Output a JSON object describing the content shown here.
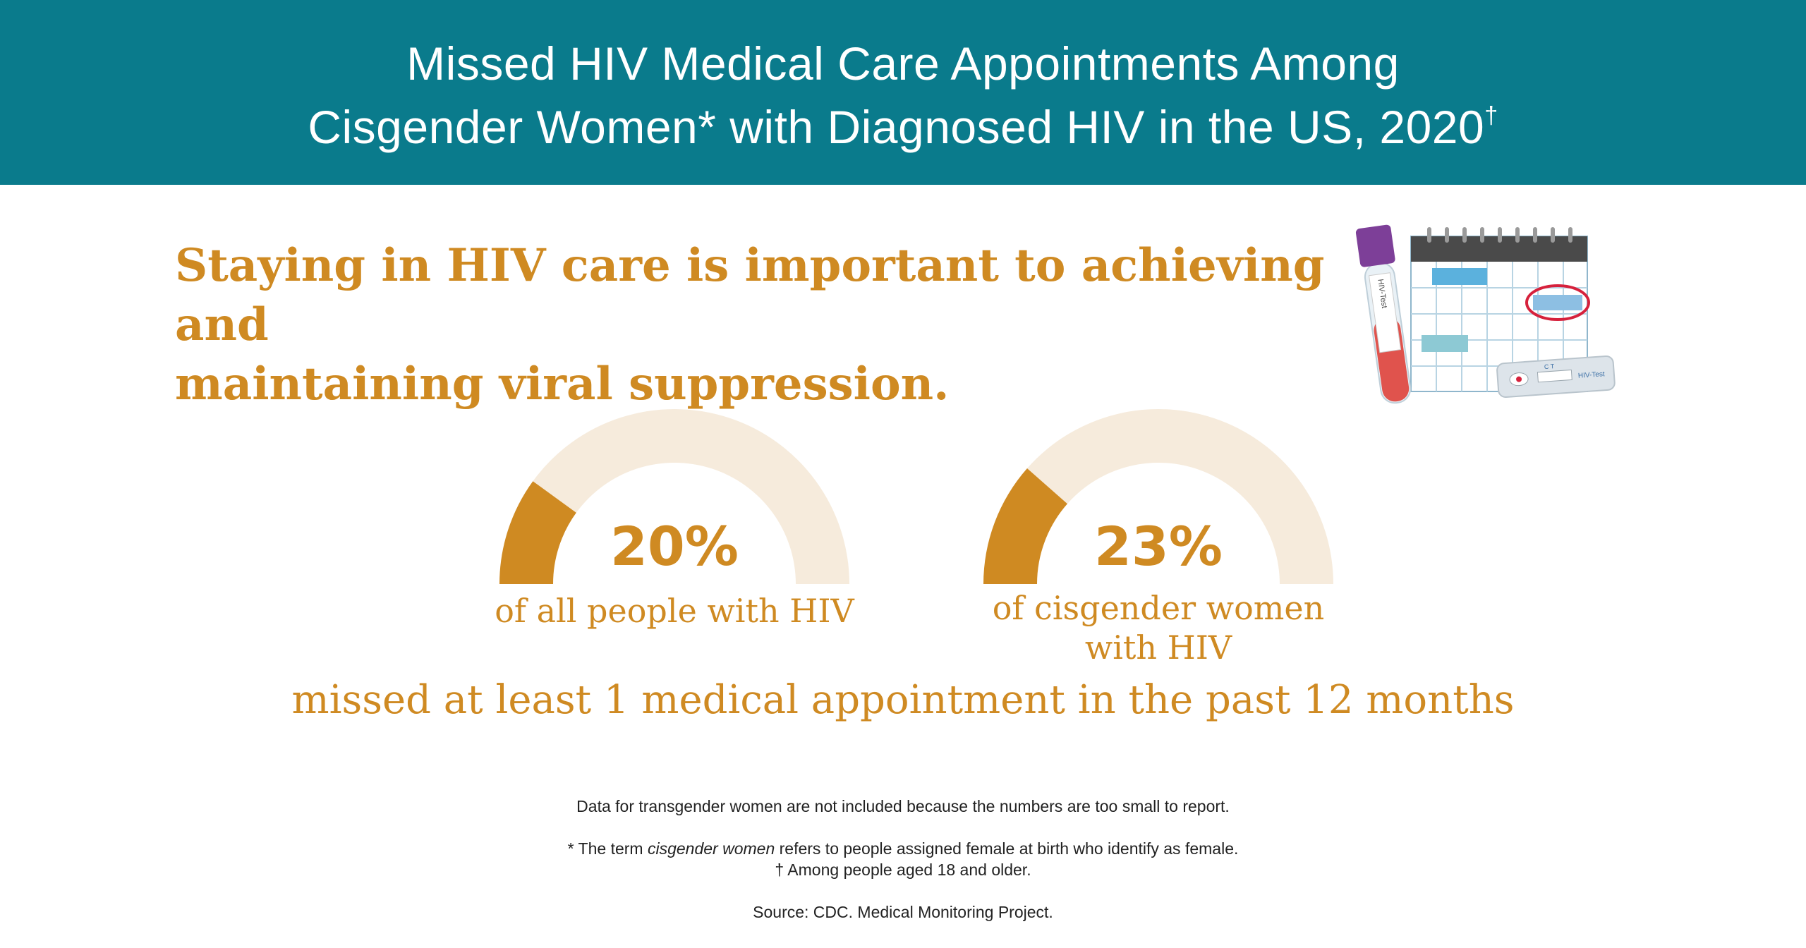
{
  "header": {
    "title_line1": "Missed HIV Medical Care Appointments Among",
    "title_line2": "Cisgender Women* with Diagnosed HIV in the US, 2020",
    "title_mark": "†"
  },
  "intro": {
    "line1": "Staying in HIV care is important to achieving and",
    "line2": "maintaining viral suppression."
  },
  "stats": [
    {
      "value": "20%",
      "label_line1": "of all people with HIV",
      "label_line2": ""
    },
    {
      "value": "23%",
      "label_line1": "of cisgender women",
      "label_line2": "with HIV"
    }
  ],
  "bottom_caption": "missed at least 1 medical appointment in the past 12 months",
  "notes": {
    "transgender": "Data for transgender women are not included because the numbers are too small to report.",
    "cisgender_prefix": "* The term ",
    "cisgender_term": "cisgender women",
    "cisgender_suffix": " refers to people assigned female at birth who identify as female.",
    "age": "† Among people aged 18 and older.",
    "source": "Source: CDC. Medical Monitoring Project."
  },
  "illustration": {
    "tube_label": "HIV-Test",
    "test_label": "HIV-Test",
    "test_marks": "C  T"
  },
  "chart_data": [
    {
      "type": "gauge",
      "value": 20,
      "max": 100
    },
    {
      "type": "gauge",
      "value": 23,
      "max": 100
    }
  ],
  "colors": {
    "banner": "#0a7b8c",
    "accent": "#cf8a22",
    "track": "#f6ebdc"
  }
}
